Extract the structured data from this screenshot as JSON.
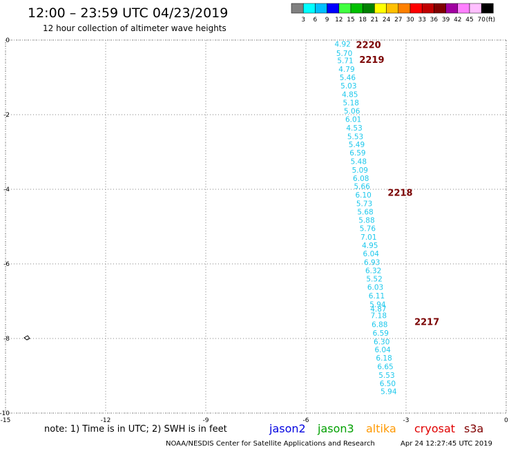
{
  "header": {
    "title": "12:00 – 23:59 UTC 04/23/2019",
    "subtitle": "12 hour collection of altimeter wave heights"
  },
  "legend": {
    "colors": [
      "#808080",
      "#00ffff",
      "#00bfff",
      "#0000ff",
      "#40ff40",
      "#00c000",
      "#008000",
      "#ffff00",
      "#ffc000",
      "#ff8000",
      "#ff0000",
      "#c00000",
      "#800000",
      "#a000a0",
      "#ff80ff",
      "#ffc0ff",
      "#000000"
    ],
    "labels": [
      "3",
      "6",
      "9",
      "12",
      "15",
      "18",
      "21",
      "24",
      "27",
      "30",
      "33",
      "36",
      "39",
      "42",
      "45",
      "70",
      "(ft)"
    ]
  },
  "axes": {
    "x_ticks": [
      "-15",
      "-12",
      "-9",
      "-6",
      "-3",
      "0"
    ],
    "y_ticks": [
      "0",
      "-2",
      "-4",
      "-6",
      "-8",
      "-10"
    ]
  },
  "track": {
    "color": "#1ec8ec",
    "points": [
      {
        "lon": -4.9,
        "lat": -0.1,
        "swh": "4.92"
      },
      {
        "lon": -4.85,
        "lat": -0.35,
        "swh": "5.70"
      },
      {
        "lon": -4.82,
        "lat": -0.55,
        "swh": "5.71"
      },
      {
        "lon": -4.78,
        "lat": -0.78,
        "swh": "4.79"
      },
      {
        "lon": -4.75,
        "lat": -1.0,
        "swh": "5.46"
      },
      {
        "lon": -4.72,
        "lat": -1.22,
        "swh": "5.03"
      },
      {
        "lon": -4.68,
        "lat": -1.45,
        "swh": "4.85"
      },
      {
        "lon": -4.65,
        "lat": -1.68,
        "swh": "5.18"
      },
      {
        "lon": -4.62,
        "lat": -1.9,
        "swh": "5.06"
      },
      {
        "lon": -4.58,
        "lat": -2.12,
        "swh": "6.01"
      },
      {
        "lon": -4.55,
        "lat": -2.35,
        "swh": "4.53"
      },
      {
        "lon": -4.52,
        "lat": -2.58,
        "swh": "5.53"
      },
      {
        "lon": -4.48,
        "lat": -2.8,
        "swh": "5.49"
      },
      {
        "lon": -4.45,
        "lat": -3.02,
        "swh": "6.59"
      },
      {
        "lon": -4.42,
        "lat": -3.25,
        "swh": "5.48"
      },
      {
        "lon": -4.38,
        "lat": -3.48,
        "swh": "5.09"
      },
      {
        "lon": -4.35,
        "lat": -3.7,
        "swh": "6.08"
      },
      {
        "lon": -4.32,
        "lat": -3.92,
        "swh": "5.66"
      },
      {
        "lon": -4.28,
        "lat": -4.15,
        "swh": "6.10"
      },
      {
        "lon": -4.25,
        "lat": -4.38,
        "swh": "5.73"
      },
      {
        "lon": -4.22,
        "lat": -4.6,
        "swh": "5.68"
      },
      {
        "lon": -4.18,
        "lat": -4.82,
        "swh": "5.88"
      },
      {
        "lon": -4.15,
        "lat": -5.05,
        "swh": "5.76"
      },
      {
        "lon": -4.12,
        "lat": -5.28,
        "swh": "7.01"
      },
      {
        "lon": -4.08,
        "lat": -5.5,
        "swh": "4.95"
      },
      {
        "lon": -4.05,
        "lat": -5.72,
        "swh": "6.04"
      },
      {
        "lon": -4.02,
        "lat": -5.95,
        "swh": "6.93"
      },
      {
        "lon": -3.98,
        "lat": -6.18,
        "swh": "6.32"
      },
      {
        "lon": -3.95,
        "lat": -6.4,
        "swh": "5.52"
      },
      {
        "lon": -3.92,
        "lat": -6.62,
        "swh": "6.03"
      },
      {
        "lon": -3.88,
        "lat": -6.85,
        "swh": "6.11"
      },
      {
        "lon": -3.85,
        "lat": -7.08,
        "swh": "5.94"
      },
      {
        "lon": -3.83,
        "lat": -7.2,
        "swh": "4.87"
      },
      {
        "lon": -3.82,
        "lat": -7.38,
        "swh": "7.18"
      },
      {
        "lon": -3.79,
        "lat": -7.62,
        "swh": "6.88"
      },
      {
        "lon": -3.76,
        "lat": -7.85,
        "swh": "6.59"
      },
      {
        "lon": -3.73,
        "lat": -8.08,
        "swh": "6.30"
      },
      {
        "lon": -3.7,
        "lat": -8.3,
        "swh": "6.04"
      },
      {
        "lon": -3.66,
        "lat": -8.52,
        "swh": "6.18"
      },
      {
        "lon": -3.62,
        "lat": -8.75,
        "swh": "6.65"
      },
      {
        "lon": -3.58,
        "lat": -8.98,
        "swh": "5.53"
      },
      {
        "lon": -3.55,
        "lat": -9.2,
        "swh": "6.50"
      },
      {
        "lon": -3.52,
        "lat": -9.42,
        "swh": "5.94"
      }
    ]
  },
  "pass_labels": [
    {
      "text": "2220",
      "lon": -4.5,
      "lat": -0.12
    },
    {
      "text": "2219",
      "lon": -4.4,
      "lat": -0.52
    },
    {
      "text": "2218",
      "lon": -3.55,
      "lat": -4.08
    },
    {
      "text": "2217",
      "lon": -2.75,
      "lat": -7.55
    }
  ],
  "note": "note: 1) Time is in UTC; 2) SWH is in feet",
  "satellites": [
    {
      "name": "jason2",
      "color": "#0000e0"
    },
    {
      "name": "jason3",
      "color": "#00a000"
    },
    {
      "name": "altika",
      "color": "#ff9900"
    },
    {
      "name": "cryosat",
      "color": "#e00000"
    },
    {
      "name": "s3a",
      "color": "#800000"
    }
  ],
  "footer": {
    "credit": "NOAA/NESDIS Center for Satellite Applications and Research",
    "timestamp": "Apr 24 12:27:45 UTC 2019"
  }
}
